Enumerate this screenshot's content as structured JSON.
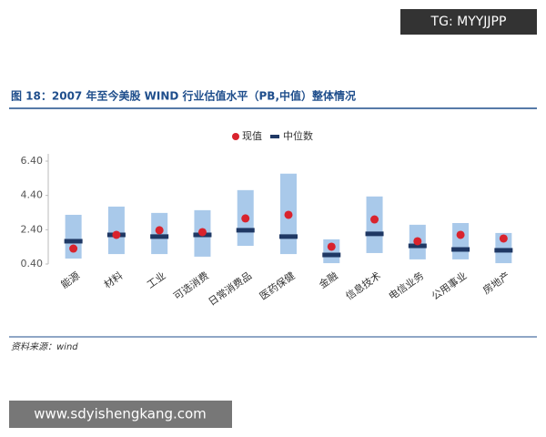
{
  "watermarks": [
    "TG: MYYJJPP",
    "www.sdyishengkang.com"
  ],
  "chart_data": {
    "type": "range",
    "title": "图 18：2007 年至今美股 WIND 行业估值水平（PB,中值）整体情况",
    "source": "资料来源：wind",
    "categories": [
      "能源",
      "材料",
      "工业",
      "可选消费",
      "日常消费品",
      "医药保健",
      "金融",
      "信息技术",
      "电信业务",
      "公用事业",
      "房地产"
    ],
    "ranges": {
      "color": "#a9c9ea",
      "low": [
        0.72,
        0.98,
        0.98,
        0.83,
        1.46,
        0.98,
        0.45,
        1.04,
        0.67,
        0.67,
        0.45
      ],
      "high": [
        3.27,
        3.75,
        3.38,
        3.54,
        4.71,
        5.67,
        1.84,
        4.34,
        2.69,
        2.79,
        2.21
      ]
    },
    "series": [
      {
        "name": "现值",
        "color": "#d9232d",
        "values": [
          1.3,
          2.1,
          2.37,
          2.26,
          3.06,
          3.27,
          1.41,
          3.0,
          1.73,
          2.1,
          1.89
        ]
      },
      {
        "name": "中位数",
        "color": "#1f3864",
        "values": [
          1.73,
          2.1,
          2.0,
          2.1,
          2.37,
          2.0,
          0.93,
          2.16,
          1.46,
          1.25,
          1.2
        ]
      }
    ],
    "ylim": [
      0.4,
      6.4
    ],
    "yticks": [
      {
        "value": 0.4,
        "label": "0.40"
      },
      {
        "value": 2.4,
        "label": "2.40"
      },
      {
        "value": 4.4,
        "label": "4.40"
      },
      {
        "value": 6.4,
        "label": "6.40"
      }
    ]
  }
}
